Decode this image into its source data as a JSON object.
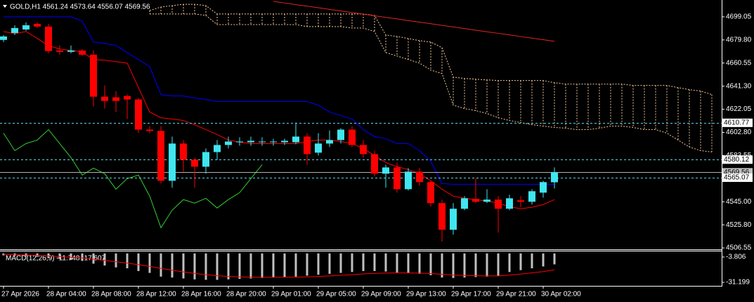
{
  "chart_data": [
    {
      "type": "candlestick",
      "title": "GOLD,H1  4561.24 4573.64 4556.07 4569.56",
      "categories": [
        "27 Apr 2026",
        null,
        null,
        null,
        "28 Apr 04:00",
        null,
        null,
        null,
        "28 Apr 08:00",
        null,
        null,
        null,
        "28 Apr 12:00",
        null,
        null,
        null,
        "28 Apr 16:00",
        null,
        null,
        null,
        "28 Apr 20:00",
        null,
        null,
        null,
        "29 Apr 01:00",
        null,
        null,
        null,
        "29 Apr 05:00",
        null,
        null,
        null,
        "29 Apr 09:00",
        null,
        null,
        null,
        "29 Apr 13:00",
        null,
        null,
        null,
        "29 Apr 17:00",
        null,
        null,
        null,
        "29 Apr 21:00",
        null,
        null,
        null,
        "30 Apr 02:00",
        null,
        null,
        null,
        null,
        null,
        null,
        null,
        null,
        null,
        null,
        null,
        null,
        null,
        null,
        null
      ],
      "up_color": "#3fe6f0",
      "down_color": "#ff0000",
      "open": [
        4679.8,
        4685.6,
        4688.5,
        4693.2,
        4690.9,
        4671.0,
        4669.9,
        4671.0,
        4667.5,
        4632.5,
        4632.0,
        4633.1,
        4630.2,
        4605.1,
        4604.0,
        4562.5,
        4593.5,
        4580.0,
        4574.2,
        4586.4,
        4592.3,
        4594.6,
        4594.6,
        4594.6,
        4594.6,
        4594.6,
        4594.6,
        4599.3,
        4585.9,
        4593.5,
        4596.4,
        4605.1,
        4592.3,
        4584.7,
        4568.4,
        4573.6,
        4555.5,
        4570.1,
        4561.4,
        4543.9,
        4521.7,
        4539.2,
        4547.4,
        4545.0,
        4546.8,
        4539.2,
        4546.2,
        4545.0,
        4552.6,
        4561.24,
        null,
        null,
        null,
        null,
        null,
        null,
        null,
        null,
        null,
        null,
        null,
        null,
        null,
        null
      ],
      "high": [
        4683.9,
        4692.0,
        4694.4,
        4694.4,
        4693.2,
        4675.1,
        4675.1,
        4672.2,
        4671.0,
        4641.9,
        4637.2,
        4634.3,
        4631.4,
        4608.0,
        4608.0,
        4599.3,
        4596.4,
        4581.8,
        4589.4,
        4596.4,
        4599.3,
        4598.7,
        4599.3,
        4598.7,
        4597.5,
        4597.5,
        4611.0,
        4602.2,
        4602.2,
        4604.5,
        4606.3,
        4608.0,
        4596.4,
        4587.6,
        4575.9,
        4577.7,
        4573.0,
        4573.0,
        4562.5,
        4546.8,
        4543.9,
        4549.7,
        4564.3,
        4555.5,
        4549.7,
        4550.9,
        4549.7,
        4555.5,
        4562.5,
        4573.64,
        null,
        null,
        null,
        null,
        null,
        null,
        null,
        null,
        null,
        null,
        null,
        null,
        null,
        null
      ],
      "low": [
        4678.0,
        4683.9,
        4687.4,
        4689.7,
        4668.7,
        4667.5,
        4668.7,
        4666.4,
        4624.4,
        4622.6,
        4619.7,
        4613.9,
        4602.2,
        4602.2,
        4560.2,
        4556.7,
        4570.1,
        4556.7,
        4568.4,
        4580.0,
        4589.4,
        4591.7,
        4591.7,
        4591.7,
        4591.7,
        4592.3,
        4592.9,
        4575.9,
        4583.5,
        4590.6,
        4593.5,
        4590.6,
        4581.8,
        4566.0,
        4556.7,
        4552.6,
        4554.4,
        4558.4,
        4540.9,
        4511.8,
        4517.6,
        4538.0,
        4543.9,
        4543.9,
        4519.3,
        4538.0,
        4540.4,
        4542.7,
        4548.5,
        4556.07,
        null,
        null,
        null,
        null,
        null,
        null,
        null,
        null,
        null,
        null,
        null,
        null,
        null,
        null
      ],
      "close": [
        4682.7,
        4689.7,
        4692.0,
        4690.9,
        4670.5,
        4669.9,
        4671.0,
        4667.5,
        4632.5,
        4629.0,
        4629.0,
        4630.2,
        4605.1,
        4604.0,
        4562.5,
        4593.5,
        4580.0,
        4574.2,
        4586.4,
        4592.3,
        4595.2,
        4595.2,
        4595.8,
        4595.2,
        4595.2,
        4595.8,
        4599.3,
        4584.7,
        4593.5,
        4596.4,
        4605.1,
        4592.3,
        4584.7,
        4568.4,
        4573.6,
        4555.5,
        4570.1,
        4561.4,
        4543.9,
        4521.7,
        4539.2,
        4547.9,
        4545.0,
        4546.8,
        4539.2,
        4547.9,
        4545.0,
        4553.8,
        4561.4,
        4569.56,
        null,
        null,
        null,
        null,
        null,
        null,
        null,
        null,
        null,
        null,
        null,
        null,
        null,
        null
      ],
      "lines": [
        {
          "color": "#0000ff",
          "values": [
            4699.05,
            4699.05,
            4699.05,
            4699.05,
            4699.05,
            4699.05,
            4699.05,
            4695.5,
            4678.0,
            4676.9,
            4675.1,
            4669.3,
            4663.5,
            4657.6,
            4634.3,
            4633.1,
            4633.1,
            4631.4,
            4630.2,
            4628.5,
            4628.5,
            4628.5,
            4628.5,
            4628.5,
            4628.5,
            4628.5,
            4628.5,
            4628.5,
            4625.5,
            4619.7,
            4616.8,
            4613.9,
            4605.1,
            4599.3,
            4597.5,
            4593.5,
            4593.5,
            4587.6,
            4578.9,
            4560.2,
            4559.6,
            4559.6,
            4559.6,
            4559.6,
            4559.6,
            4559.6,
            4559.6,
            4559.6,
            4559.6,
            4559.6,
            null,
            null,
            null,
            null,
            null,
            null,
            null,
            null,
            null,
            null,
            null,
            null,
            null,
            null
          ]
        },
        {
          "color": "#ff0000",
          "values": [
            4686.8,
            4685.0,
            4686.8,
            4681.0,
            4675.1,
            4672.2,
            4671.0,
            4669.9,
            4663.5,
            4662.9,
            4661.7,
            4660.5,
            4640.1,
            4619.7,
            4615.0,
            4613.9,
            4612.7,
            4609.2,
            4605.1,
            4601.0,
            4596.4,
            4594.6,
            4593.5,
            4593.5,
            4593.5,
            4593.5,
            4593.5,
            4595.2,
            4596.4,
            4596.4,
            4595.2,
            4593.5,
            4589.4,
            4583.5,
            4577.7,
            4574.2,
            4571.9,
            4568.4,
            4562.5,
            4555.5,
            4549.7,
            4547.9,
            4546.8,
            4545.6,
            4543.9,
            4540.9,
            4539.2,
            4540.4,
            4542.7,
            4546.8,
            null,
            null,
            null,
            null,
            null,
            null,
            null,
            null,
            null,
            null,
            null,
            null,
            null,
            null
          ]
        },
        {
          "color": "#32cd32",
          "values": [
            4602.2,
            4587.6,
            4593.5,
            4596.4,
            4605.1,
            4593.5,
            4581.8,
            4567.2,
            4573.0,
            4568.4,
            4555.5,
            4564.3,
            4567.2,
            4549.7,
            4523.4,
            4538.0,
            4546.8,
            4543.9,
            4547.9,
            4539.8,
            4546.8,
            4552.6,
            4564.3,
            4575.9,
            null,
            null,
            null,
            null,
            null,
            null,
            null,
            null,
            null,
            null,
            null,
            null,
            null,
            null,
            null,
            null,
            null,
            null,
            null,
            null,
            null,
            null,
            null,
            null,
            null,
            null,
            null,
            null,
            null,
            null,
            null,
            null,
            null,
            null,
            null,
            null,
            null,
            null,
            null,
            null
          ]
        },
        {
          "color": "#e0261e",
          "values": [
            null,
            null,
            null,
            null,
            null,
            null,
            null,
            null,
            null,
            null,
            null,
            null,
            null,
            null,
            null,
            null,
            null,
            null,
            null,
            null,
            null,
            null,
            null,
            null,
            4711.9,
            4710.6,
            4709.2,
            4707.9,
            4706.6,
            4705.2,
            4703.9,
            4702.6,
            4701.3,
            4699.9,
            4698.6,
            4697.3,
            4695.9,
            4694.6,
            4693.3,
            4691.9,
            4690.6,
            4689.3,
            4687.9,
            4686.6,
            4685.3,
            4684.0,
            4682.6,
            4681.3,
            4680.0,
            4678.6,
            null,
            null,
            null,
            null,
            null,
            null,
            null,
            null,
            null,
            null,
            null,
            null,
            null,
            null
          ]
        }
      ],
      "cloud": {
        "color": "#f4c89a",
        "span_a": [
          null,
          null,
          null,
          null,
          null,
          null,
          null,
          null,
          null,
          null,
          null,
          null,
          null,
          4704.3,
          4707.2,
          4708.4,
          4709.5,
          4709.5,
          4708.4,
          4701.4,
          4701.4,
          4701.4,
          4701.4,
          4701.4,
          4701.4,
          4701.4,
          4701.4,
          4701.4,
          4701.4,
          4701.4,
          4701.4,
          4701.4,
          4701.4,
          4700.2,
          4683.9,
          4682.7,
          4681.0,
          4679.2,
          4678.0,
          4673.4,
          4648.9,
          4647.7,
          4647.1,
          4646.5,
          4646.0,
          4646.0,
          4646.0,
          4646.0,
          4646.0,
          4644.2,
          4643.0,
          4643.0,
          4643.0,
          4643.0,
          4643.0,
          4643.0,
          4641.9,
          4641.9,
          4641.9,
          4641.9,
          4640.1,
          4638.4,
          4637.2,
          4634.3
        ],
        "span_b": [
          null,
          null,
          null,
          null,
          null,
          null,
          null,
          null,
          null,
          null,
          null,
          null,
          null,
          4701.4,
          4701.4,
          4701.4,
          4701.4,
          4701.4,
          4700.2,
          4692.6,
          4692.6,
          4692.6,
          4692.6,
          4692.6,
          4692.6,
          4692.6,
          4692.6,
          4690.9,
          4690.9,
          4690.9,
          4690.9,
          4689.7,
          4689.7,
          4686.8,
          4669.3,
          4666.4,
          4663.5,
          4660.5,
          4654.7,
          4651.8,
          4625.5,
          4622.6,
          4620.9,
          4618.5,
          4615.0,
          4612.7,
          4611.0,
          4609.2,
          4608.0,
          4606.9,
          4606.3,
          4605.1,
          4605.1,
          4606.3,
          4608.0,
          4608.0,
          4606.9,
          4605.1,
          4605.1,
          4602.2,
          4596.4,
          4590.6,
          4587.6,
          4586.5
        ]
      },
      "hlines": [
        {
          "value": 4610.77,
          "color": "#5fd3e6",
          "dashed": true,
          "box": "#ffffff"
        },
        {
          "value": 4580.12,
          "color": "#5fd3e6",
          "dashed": true,
          "box": "#ffffff"
        },
        {
          "value": 4569.56,
          "color": "#b0b0b0",
          "dashed": false,
          "box": "#c0c0c0"
        },
        {
          "value": 4565.07,
          "color": "#5fd3e6",
          "dashed": true,
          "box": "#ffffff"
        }
      ],
      "ylim": [
        4505.4,
        4713.05
      ],
      "yticks": [
        4699.05,
        {
          "value": 4679.8,
          "label": "4679.80"
        },
        4660.55,
        {
          "value": 4641.3,
          "label": "4641.30"
        },
        4622.05,
        {
          "value": 4602.8,
          "label": "4602.80"
        },
        4583.55,
        {
          "value": 4545,
          "label": "4545.00"
        },
        {
          "value": 4525.8,
          "label": "4525.80"
        },
        4506.55
      ]
    },
    {
      "type": "macd",
      "title": "MACD(12,26,9) -11.748 -17.607",
      "histogram_color": "#c0c0c0",
      "signal_color": "#ff0000",
      "histogram": [
        -2,
        -2.5,
        -3,
        -3.5,
        -5,
        -6,
        -7,
        -8,
        -11,
        -13,
        -15,
        -16,
        -19,
        -21,
        -25,
        -26,
        -27,
        -28,
        -28.5,
        -28.5,
        -28,
        -27.5,
        -27,
        -26.5,
        -26,
        -25.5,
        -25,
        -24,
        -23,
        -22,
        -21,
        -20,
        -19,
        -19,
        -19.5,
        -20.5,
        -21,
        -22,
        -23.5,
        -26,
        -26.5,
        -26,
        -25.5,
        -25,
        -24.5,
        -20,
        -18,
        -16,
        -14,
        -11.748,
        null,
        null,
        null,
        null,
        null,
        null,
        null,
        null,
        null,
        null,
        null,
        null,
        null,
        null
      ],
      "signal": [
        -1,
        -1.3,
        -1.7,
        -2.1,
        -2.7,
        -3.4,
        -4.1,
        -4.9,
        -6.1,
        -7.5,
        -9,
        -10.4,
        -12.1,
        -13.9,
        -16.1,
        -18.1,
        -19.9,
        -21.5,
        -22.9,
        -24,
        -24.8,
        -25.3,
        -25.6,
        -25.8,
        -25.8,
        -25.7,
        -25.6,
        -25.3,
        -24.8,
        -24.3,
        -23.6,
        -22.9,
        -22.1,
        -21.5,
        -21.1,
        -21,
        -21,
        -21.2,
        -21.7,
        -22.5,
        -23.3,
        -23.8,
        -24.1,
        -24.3,
        -24.3,
        -23.4,
        -22.3,
        -20.9,
        -19.6,
        -17.607,
        null,
        null,
        null,
        null,
        null,
        null,
        null,
        null,
        null,
        null,
        null,
        null,
        null,
        null
      ],
      "ylim": [
        -35,
        3
      ],
      "yticks": [
        -3.806,
        -31.199
      ]
    }
  ]
}
